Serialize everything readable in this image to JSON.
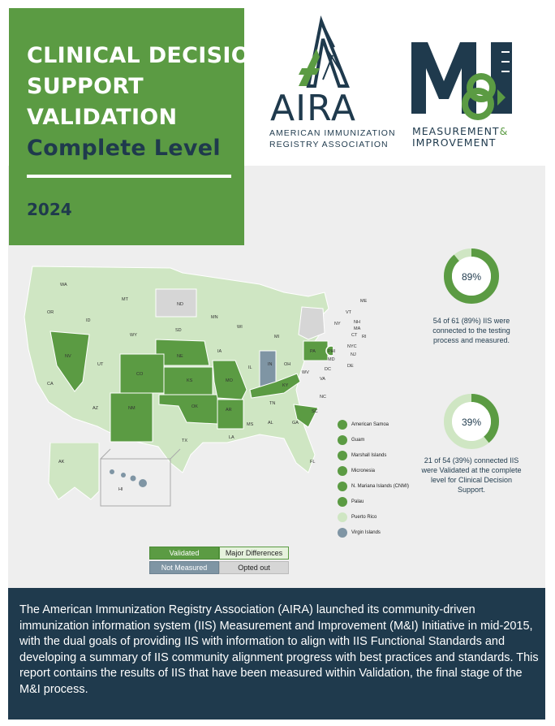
{
  "title": {
    "line1": "CLINICAL DECISION",
    "line2": "SUPPORT",
    "line3": "VALIDATION",
    "line4": "Complete Level",
    "year": "2024"
  },
  "aira_logo": {
    "word": "AIRA",
    "sub1": "AMERICAN IMMUNIZATION",
    "sub2": "REGISTRY ASSOCIATION"
  },
  "mi_logo": {
    "sub1": "MEASUREMENT",
    "sub1_amp": "&",
    "sub2": "IMPROVEMENT"
  },
  "map": {
    "states": [
      "WA",
      "OR",
      "CA",
      "NV",
      "ID",
      "MT",
      "WY",
      "UT",
      "AZ",
      "CO",
      "NM",
      "ND",
      "SD",
      "NE",
      "KS",
      "OK",
      "TX",
      "MN",
      "IA",
      "MO",
      "AR",
      "LA",
      "WI",
      "IL",
      "MI",
      "IN",
      "OH",
      "KY",
      "TN",
      "MS",
      "AL",
      "GA",
      "FL",
      "SC",
      "NC",
      "VA",
      "WV",
      "PA",
      "NY",
      "VT",
      "NH",
      "ME",
      "MA",
      "RI",
      "CT",
      "NJ",
      "DE",
      "MD",
      "DC",
      "NYC",
      "PHI",
      "AK",
      "HI"
    ],
    "colors": {
      "validated": "#5b9b43",
      "major": "#cfe6c3",
      "not_measured": "#7f95a4",
      "opted_out": "#d6d6d6"
    }
  },
  "territories": [
    {
      "name": "American Samoa",
      "status": "validated"
    },
    {
      "name": "Guam",
      "status": "validated"
    },
    {
      "name": "Marshall Islands",
      "status": "validated"
    },
    {
      "name": "Micronesia",
      "status": "validated"
    },
    {
      "name": "N. Mariana Islands (CNMI)",
      "status": "validated"
    },
    {
      "name": "Palau",
      "status": "validated"
    },
    {
      "name": "Puerto Rico",
      "status": "major"
    },
    {
      "name": "Virgin Islands",
      "status": "not_measured"
    }
  ],
  "key": {
    "validated": "Validated",
    "major": "Major Differences",
    "not_measured": "Not Measured",
    "opted_out": "Opted out"
  },
  "stats": [
    {
      "percent": "89%",
      "value": 89,
      "text1": "54 of 61 (89%) IIS were",
      "text2": "connected to the testing",
      "text3": "process and measured."
    },
    {
      "percent": "39%",
      "value": 39,
      "text1": "21 of 54 (39%) connected IIS",
      "text2": "were Validated at the complete",
      "text3": "level for Clinical Decision",
      "text4": "Support."
    }
  ],
  "footer": "The American Immunization Registry Association (AIRA) launched its community-driven immunization information system (IIS) Measurement and Improvement (M&I) Initiative in mid-2015, with the dual goals of providing IIS with information to align with IIS Functional Standards and developing a summary of IIS community alignment progress with best practices and standards. This report contains the results of IIS that have been measured within Validation, the final stage of the M&I process."
}
